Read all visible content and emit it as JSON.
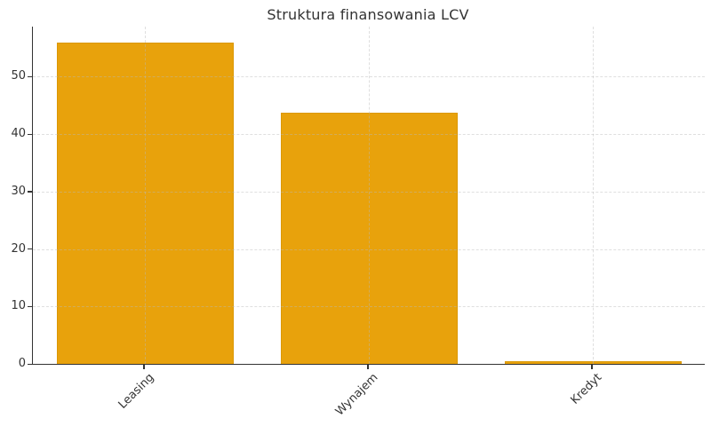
{
  "chart_data": {
    "type": "bar",
    "title": "Struktura finansowania LCV",
    "categories": [
      "Leasing",
      "Wynajem",
      "Kredyt"
    ],
    "values": [
      55.9,
      43.7,
      0.5
    ],
    "xlabel": "",
    "ylabel": "",
    "yticks": [
      0,
      10,
      20,
      30,
      40,
      50
    ],
    "ylim": [
      0,
      58.7
    ],
    "x_tick_rotation_deg": 45,
    "grid": "both, dashed, light-gray, drawn over bars",
    "legend": "none",
    "colors": {
      "bar_fill": "#E8A20C",
      "bar_edge": "#DB9806",
      "axis": "#333333",
      "grid": "#CFCFCF",
      "text": "#333333",
      "background": "#FFFFFF"
    }
  }
}
